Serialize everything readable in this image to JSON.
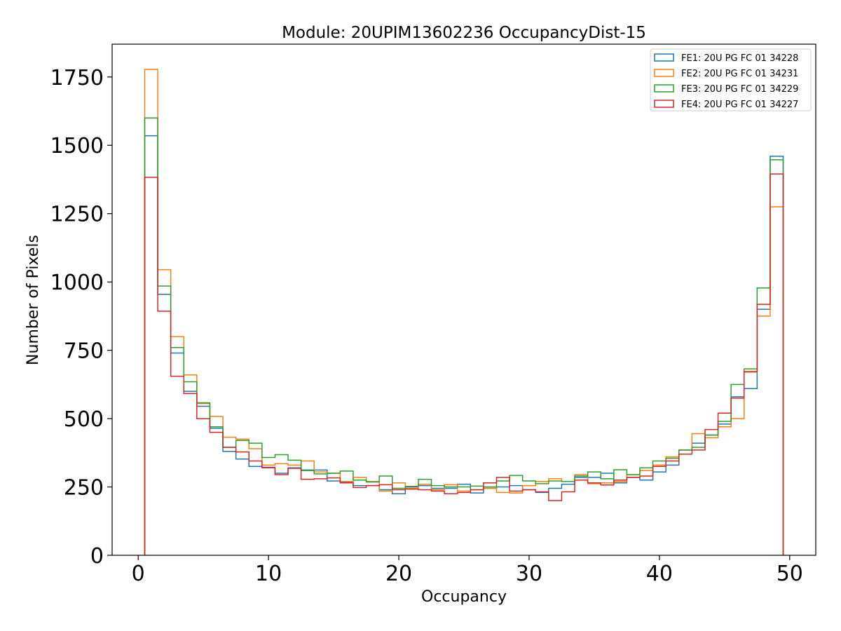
{
  "chart_data": {
    "type": "histogram",
    "title": "Module: 20UPIM13602236 OccupancyDist-15",
    "xlabel": "Occupancy",
    "ylabel": "Number of Pixels",
    "xlim": [
      -2,
      52
    ],
    "ylim": [
      0,
      1870
    ],
    "xticks": [
      0,
      10,
      20,
      30,
      40,
      50
    ],
    "yticks": [
      0,
      250,
      500,
      750,
      1000,
      1250,
      1500,
      1750
    ],
    "bin_start": 0.5,
    "bin_width": 1,
    "legend_position": "upper-right",
    "series": [
      {
        "name": "FE1: 20U PG FC 01 34228",
        "color": "#1f77b4",
        "values": [
          1535,
          955,
          740,
          600,
          545,
          465,
          380,
          352,
          325,
          320,
          300,
          320,
          312,
          312,
          272,
          268,
          255,
          255,
          240,
          225,
          250,
          255,
          245,
          245,
          260,
          228,
          245,
          250,
          255,
          240,
          230,
          245,
          260,
          285,
          285,
          300,
          265,
          285,
          275,
          305,
          330,
          385,
          410,
          440,
          480,
          580,
          610,
          900,
          1460
        ]
      },
      {
        "name": "FE2: 20U PG FC 01 34231",
        "color": "#ff7f0e",
        "values": [
          1778,
          1045,
          800,
          660,
          555,
          508,
          432,
          425,
          390,
          330,
          335,
          330,
          345,
          305,
          300,
          270,
          285,
          270,
          235,
          265,
          245,
          260,
          240,
          258,
          235,
          240,
          245,
          230,
          228,
          255,
          270,
          280,
          270,
          295,
          262,
          265,
          270,
          295,
          310,
          330,
          360,
          385,
          445,
          430,
          470,
          500,
          670,
          875,
          1275
        ]
      },
      {
        "name": "FE3: 20U PG FC 01 34229",
        "color": "#2ca02c",
        "values": [
          1600,
          985,
          760,
          635,
          558,
          470,
          395,
          420,
          410,
          358,
          368,
          348,
          310,
          298,
          300,
          308,
          275,
          268,
          290,
          245,
          252,
          278,
          255,
          250,
          250,
          253,
          250,
          272,
          292,
          272,
          262,
          272,
          270,
          290,
          305,
          280,
          313,
          295,
          320,
          345,
          355,
          385,
          395,
          440,
          490,
          625,
          682,
          978,
          1447
        ]
      },
      {
        "name": "FE4: 20U PG FC 01 34227",
        "color": "#d62728",
        "values": [
          1383,
          893,
          655,
          592,
          500,
          450,
          395,
          378,
          345,
          322,
          295,
          318,
          278,
          280,
          283,
          265,
          248,
          255,
          258,
          240,
          242,
          240,
          235,
          225,
          230,
          240,
          265,
          285,
          235,
          240,
          232,
          200,
          232,
          275,
          265,
          257,
          275,
          285,
          290,
          325,
          345,
          370,
          385,
          460,
          520,
          575,
          672,
          918,
          1395
        ]
      }
    ]
  }
}
